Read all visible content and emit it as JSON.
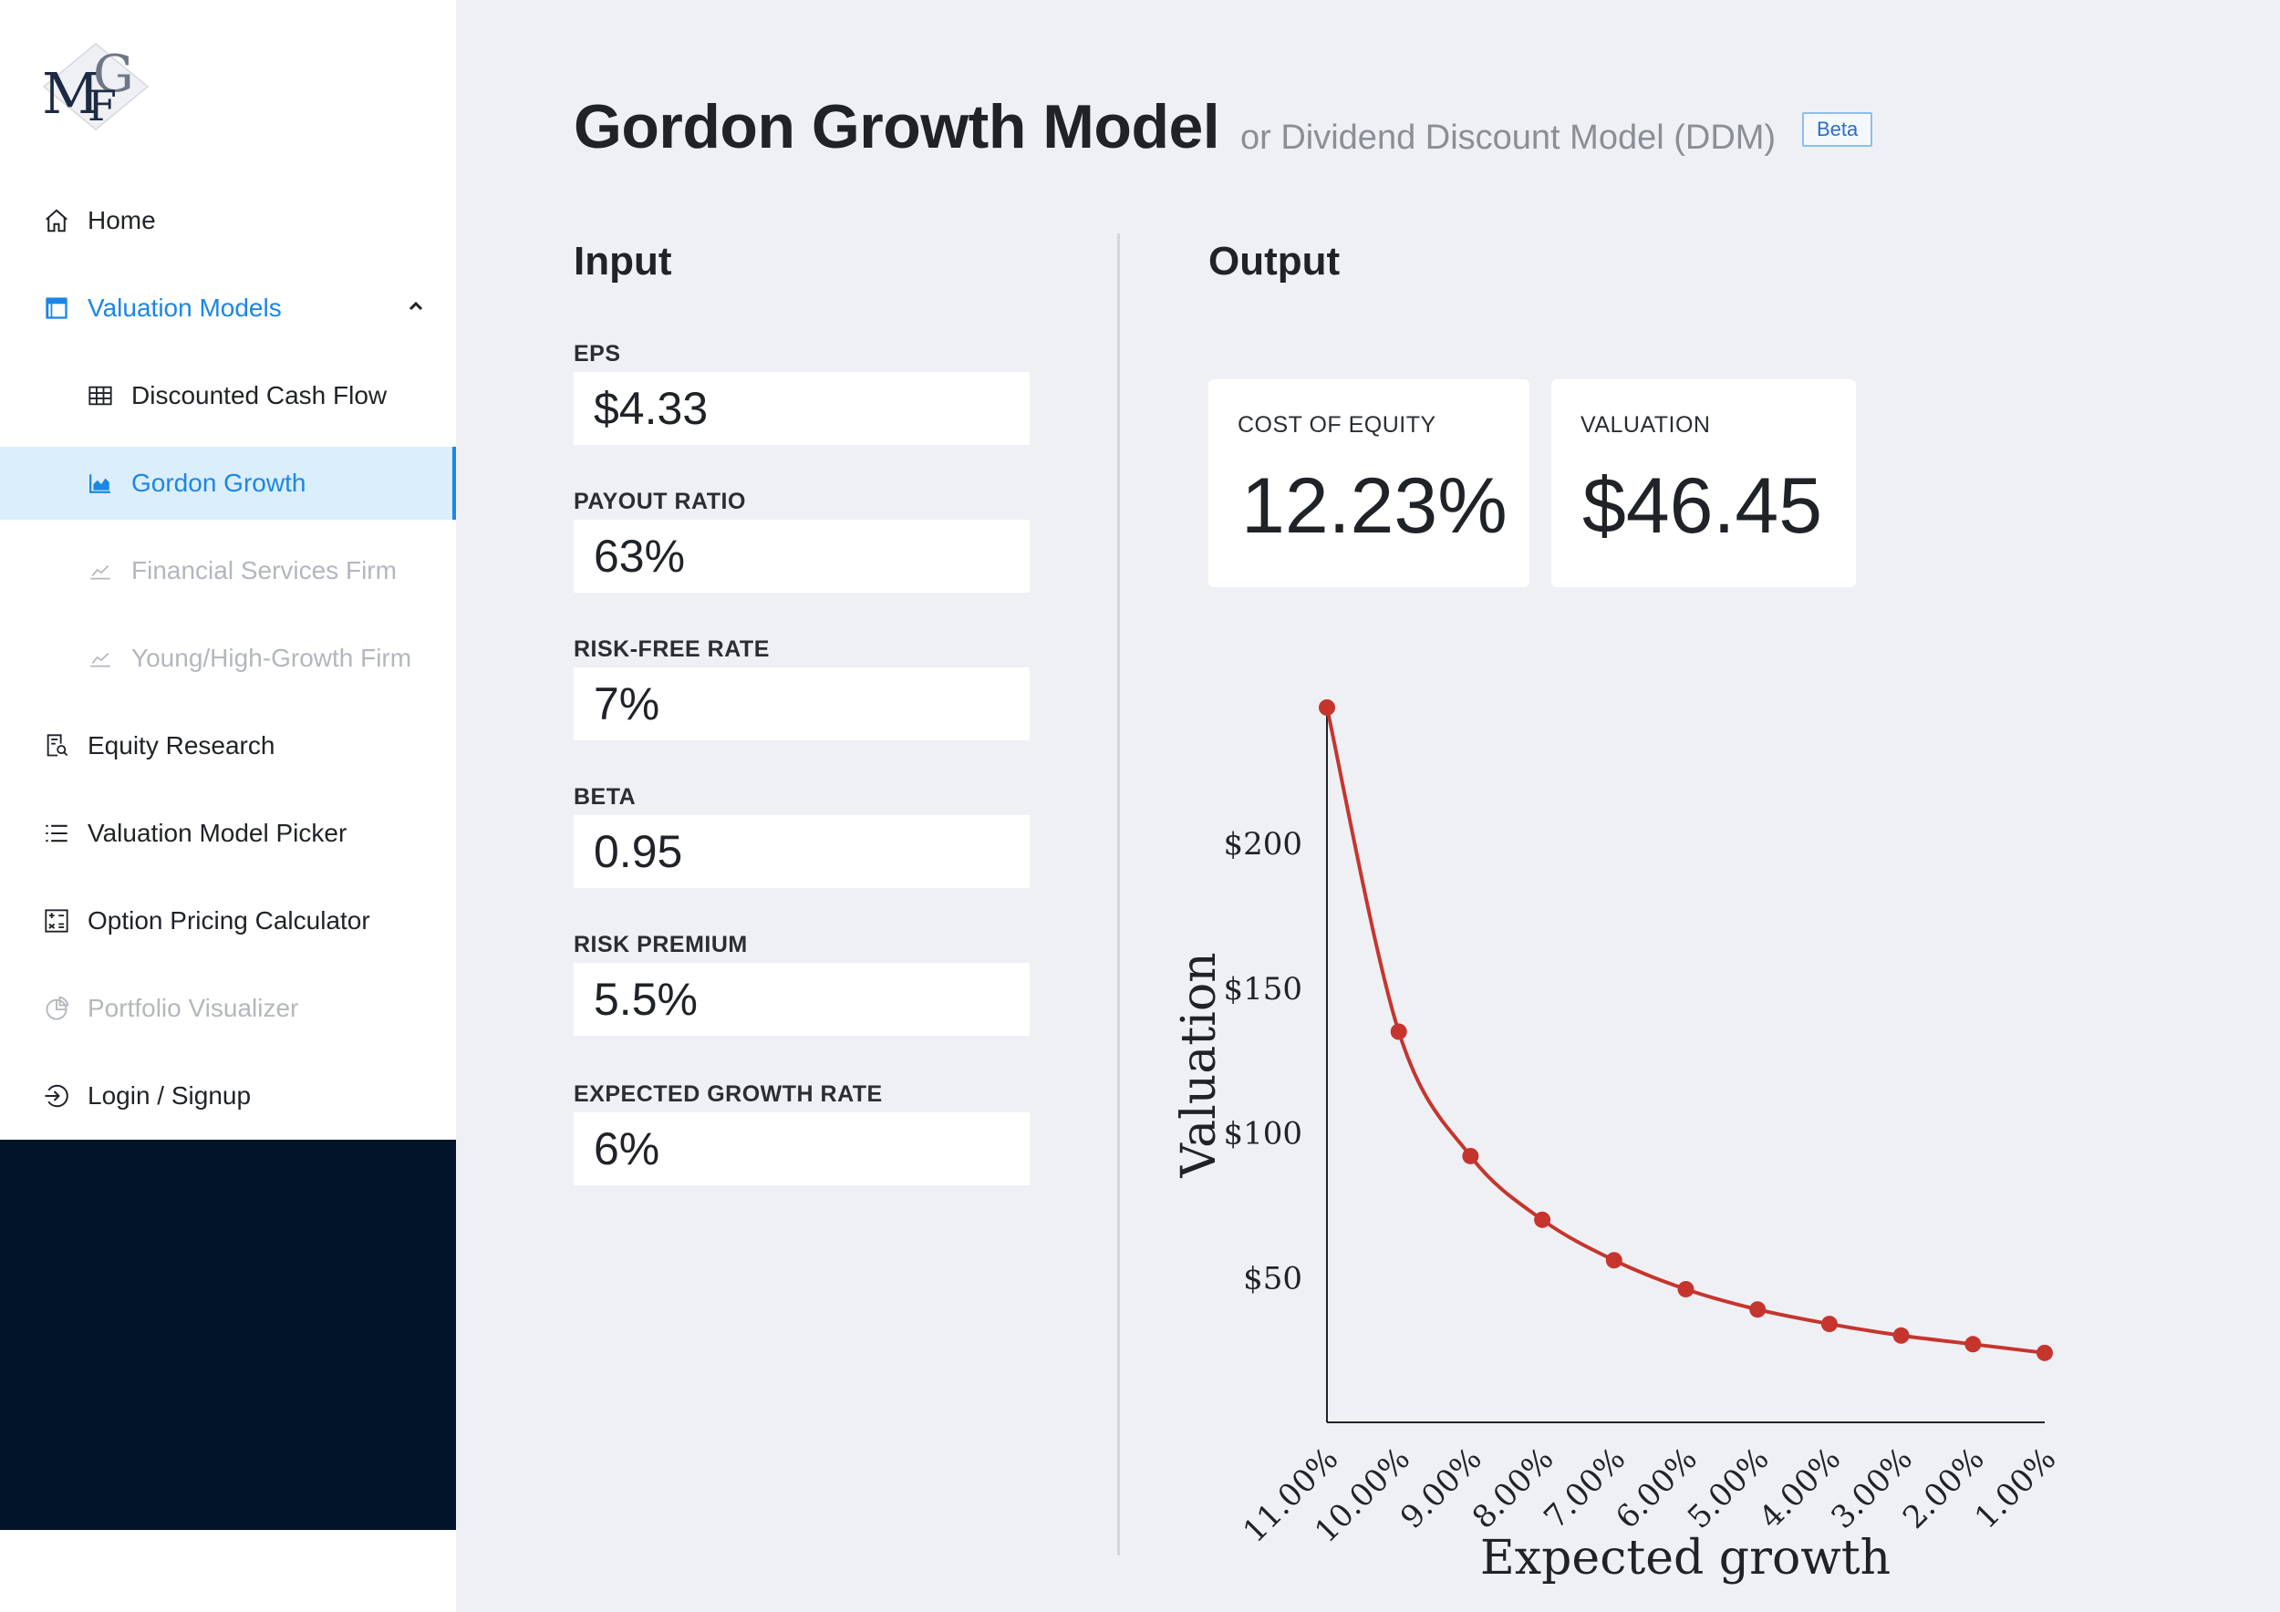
{
  "sidebar": {
    "logo_text": "MGF",
    "items": [
      {
        "label": "Home",
        "icon": "home-icon"
      },
      {
        "label": "Valuation Models",
        "icon": "layout-icon"
      },
      {
        "label": "Discounted Cash Flow",
        "icon": "table-icon"
      },
      {
        "label": "Gordon Growth",
        "icon": "area-chart-icon"
      },
      {
        "label": "Financial Services Firm",
        "icon": "line-chart-icon"
      },
      {
        "label": "Young/High-Growth Firm",
        "icon": "line-chart-icon"
      },
      {
        "label": "Equity Research",
        "icon": "file-search-icon"
      },
      {
        "label": "Valuation Model Picker",
        "icon": "list-icon"
      },
      {
        "label": "Option Pricing Calculator",
        "icon": "calculator-icon"
      },
      {
        "label": "Portfolio Visualizer",
        "icon": "pie-chart-icon"
      },
      {
        "label": "Login / Signup",
        "icon": "login-icon"
      }
    ],
    "accent_color": "#1a86e8",
    "dark_block_color": "#02142a"
  },
  "header": {
    "title": "Gordon Growth Model",
    "subtitle": "or Dividend Discount Model (DDM)",
    "badge": "Beta"
  },
  "input": {
    "title": "Input",
    "fields": [
      {
        "label": "EPS",
        "value": "$4.33"
      },
      {
        "label": "PAYOUT RATIO",
        "value": "63%"
      },
      {
        "label": "RISK-FREE RATE",
        "value": "7%"
      },
      {
        "label": "BETA",
        "value": "0.95"
      },
      {
        "label": "RISK PREMIUM",
        "value": "5.5%"
      },
      {
        "label": "EXPECTED GROWTH RATE",
        "value": "6%"
      }
    ]
  },
  "output": {
    "title": "Output",
    "cost_of_equity": {
      "label": "COST OF EQUITY",
      "value": "12.23%"
    },
    "valuation": {
      "label": "VALUATION",
      "value": "$46.45"
    }
  },
  "chart_data": {
    "type": "line",
    "xlabel": "Expected growth",
    "ylabel": "Valuation",
    "categories": [
      "11.00%",
      "10.00%",
      "9.00%",
      "8.00%",
      "7.00%",
      "6.00%",
      "5.00%",
      "4.00%",
      "3.00%",
      "2.00%",
      "1.00%"
    ],
    "values": [
      247,
      135,
      92,
      70,
      56,
      46,
      39,
      34,
      30,
      27,
      24
    ],
    "y_ticks": [
      {
        "value": 50,
        "label": "$50"
      },
      {
        "value": 100,
        "label": "$100"
      },
      {
        "value": 150,
        "label": "$150"
      },
      {
        "value": 200,
        "label": "$200"
      }
    ],
    "ylim": [
      0,
      247
    ],
    "line_color": "#c5352e",
    "grid": false
  }
}
